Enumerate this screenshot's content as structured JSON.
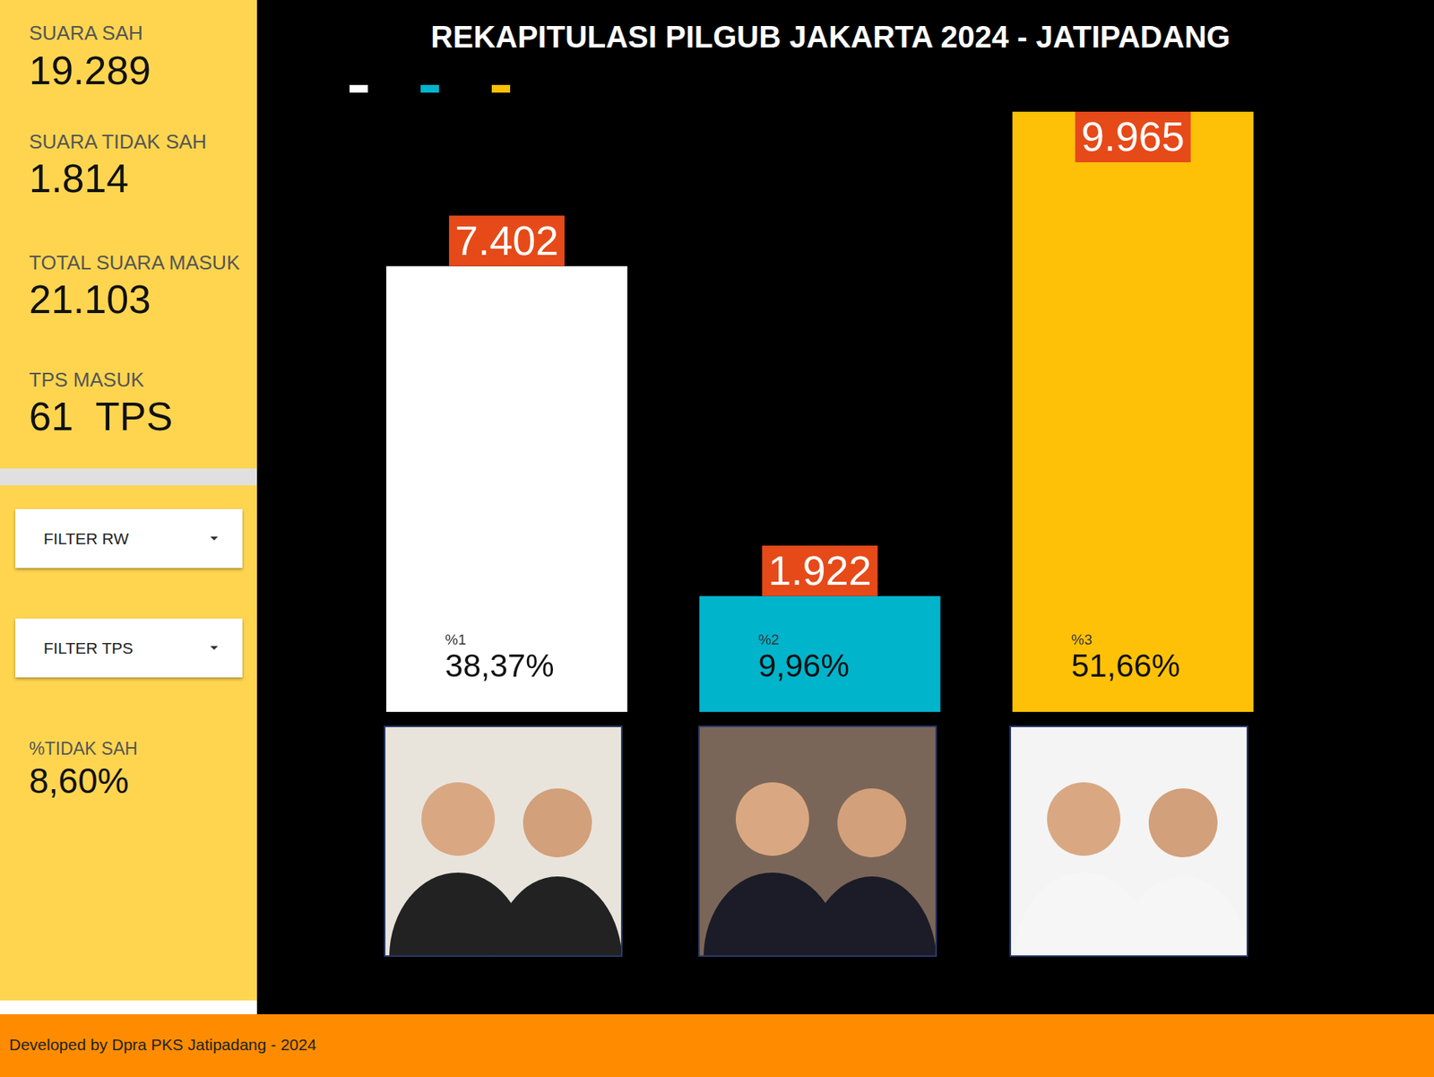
{
  "chart_data": {
    "type": "bar",
    "title": "REKAPITULASI PILGUB JAKARTA 2024 - JATIPADANG",
    "categories": [
      null,
      null,
      null
    ],
    "values": [
      7402,
      1922,
      9965
    ],
    "value_labels": [
      "7.402",
      "1.922",
      "9.965"
    ],
    "colors": [
      "#ffffff",
      "#00b4cc",
      "#ffc107"
    ],
    "ylim": [
      0,
      9965
    ],
    "tick_labels": false,
    "grid": false,
    "data_labels": true,
    "legend": "top-left",
    "shares": [
      38.37,
      9.96,
      51.66
    ],
    "share_labels": [
      "38,37%",
      "9,96%",
      "51,66%"
    ],
    "share_titles": [
      "%1",
      "%2",
      "%3"
    ]
  },
  "dashboard": {
    "stats": [
      {
        "label": "SUARA SAH",
        "value": "19.289"
      },
      {
        "label": "SUARA TIDAK SAH",
        "value": "1.814"
      },
      {
        "label": "TOTAL SUARA MASUK",
        "value": "21.103"
      }
    ],
    "tps": {
      "label": "TPS MASUK",
      "value": "61",
      "unit": "TPS"
    },
    "filters": [
      "FILTER RW",
      "FILTER TPS"
    ],
    "invalid_share": {
      "label": "%TIDAK SAH",
      "value": "8,60%"
    },
    "footer": "Developed by Dpra PKS Jatipadang - 2024"
  }
}
